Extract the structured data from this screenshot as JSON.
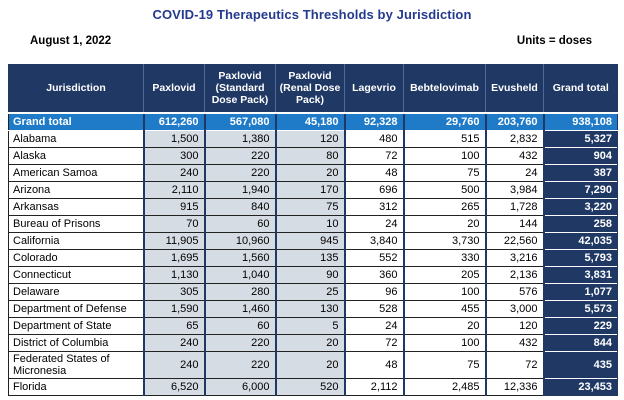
{
  "title": "COVID-19 Therapeutics Thresholds by Jurisdiction",
  "date_label": "August 1, 2022",
  "units_label": "Units = doses",
  "colors": {
    "title_blue": "#243a8f",
    "header_navy": "#1f3864",
    "grand_row_blue": "#1f7bc8",
    "shaded_cell": "#d6dce4",
    "total_column_navy": "#1f3864",
    "header_text": "#ffffff"
  },
  "table": {
    "columns": [
      "Jurisdiction",
      "Paxlovid",
      "Paxlovid (Standard Dose Pack)",
      "Paxlovid (Renal Dose Pack)",
      "Lagevrio",
      "Bebtelovimab",
      "Evusheld",
      "Grand total"
    ],
    "grand_total_row": {
      "label": "Grand total",
      "values": [
        "612,260",
        "567,080",
        "45,180",
        "92,328",
        "29,760",
        "203,760",
        "938,108"
      ]
    },
    "rows": [
      {
        "label": "Alabama",
        "values": [
          "1,500",
          "1,380",
          "120",
          "480",
          "515",
          "2,832",
          "5,327"
        ]
      },
      {
        "label": "Alaska",
        "values": [
          "300",
          "220",
          "80",
          "72",
          "100",
          "432",
          "904"
        ]
      },
      {
        "label": "American Samoa",
        "values": [
          "240",
          "220",
          "20",
          "48",
          "75",
          "24",
          "387"
        ]
      },
      {
        "label": "Arizona",
        "values": [
          "2,110",
          "1,940",
          "170",
          "696",
          "500",
          "3,984",
          "7,290"
        ]
      },
      {
        "label": "Arkansas",
        "values": [
          "915",
          "840",
          "75",
          "312",
          "265",
          "1,728",
          "3,220"
        ]
      },
      {
        "label": "Bureau of Prisons",
        "values": [
          "70",
          "60",
          "10",
          "24",
          "20",
          "144",
          "258"
        ]
      },
      {
        "label": "California",
        "values": [
          "11,905",
          "10,960",
          "945",
          "3,840",
          "3,730",
          "22,560",
          "42,035"
        ]
      },
      {
        "label": "Colorado",
        "values": [
          "1,695",
          "1,560",
          "135",
          "552",
          "330",
          "3,216",
          "5,793"
        ]
      },
      {
        "label": "Connecticut",
        "values": [
          "1,130",
          "1,040",
          "90",
          "360",
          "205",
          "2,136",
          "3,831"
        ]
      },
      {
        "label": "Delaware",
        "values": [
          "305",
          "280",
          "25",
          "96",
          "100",
          "576",
          "1,077"
        ]
      },
      {
        "label": "Department of Defense",
        "values": [
          "1,590",
          "1,460",
          "130",
          "528",
          "455",
          "3,000",
          "5,573"
        ]
      },
      {
        "label": "Department of State",
        "values": [
          "65",
          "60",
          "5",
          "24",
          "20",
          "120",
          "229"
        ]
      },
      {
        "label": "District of Columbia",
        "values": [
          "240",
          "220",
          "20",
          "72",
          "100",
          "432",
          "844"
        ]
      },
      {
        "label": "Federated States of Micronesia",
        "values": [
          "240",
          "220",
          "20",
          "48",
          "75",
          "72",
          "435"
        ]
      },
      {
        "label": "Florida",
        "values": [
          "6,520",
          "6,000",
          "520",
          "2,112",
          "2,485",
          "12,336",
          "23,453"
        ]
      }
    ]
  }
}
